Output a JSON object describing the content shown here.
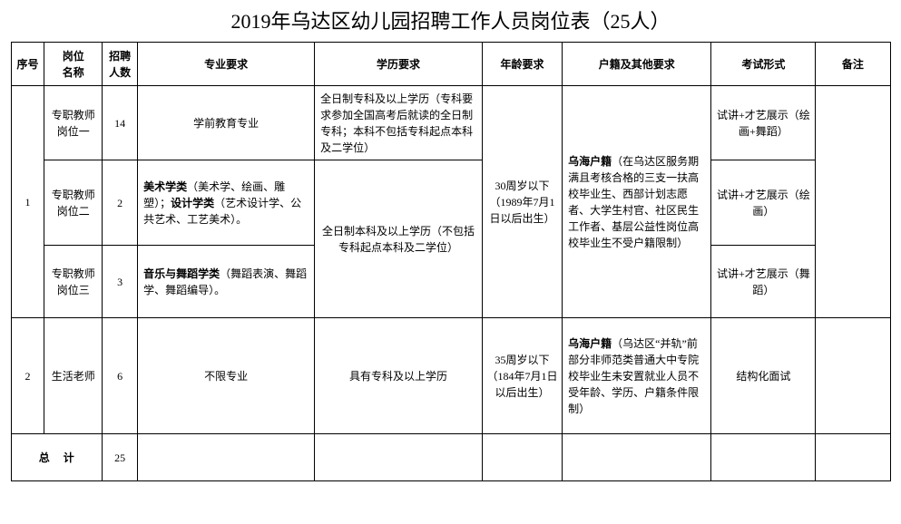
{
  "title": "2019年乌达区幼儿园招聘工作人员岗位表（25人）",
  "headers": {
    "seq": "序号",
    "position": "岗位\n名称",
    "count": "招聘\n人数",
    "major": "专业要求",
    "education": "学历要求",
    "age": "年龄要求",
    "hukou": "户籍及其他要求",
    "exam": "考试形式",
    "note": "备注"
  },
  "rows": [
    {
      "seq": "1",
      "position": "专职教师岗位一",
      "count": "14",
      "major_html": "学前教育专业",
      "education": "全日制专科及以上学历（专科要求参加全国高考后就读的全日制专科；本科不包括专科起点本科及二学位）",
      "age": "30周岁以下（1989年7月1日以后出生）",
      "hukou_bold": "乌海户籍",
      "hukou_rest": "（在乌达区服务期满且考核合格的三支一扶高校毕业生、西部计划志愿者、大学生村官、社区民生工作者、基层公益性岗位高校毕业生不受户籍限制）",
      "exam": "试讲+才艺展示（绘画+舞蹈）"
    },
    {
      "position": "专职教师岗位二",
      "count": "2",
      "major_bold1": "美术学类",
      "major_rest1": "（美术学、绘画、雕塑）；",
      "major_bold2": "设计学类",
      "major_rest2": "（艺术设计学、公共艺术、工艺美术）。",
      "education": "全日制本科及以上学历（不包括专科起点本科及二学位）",
      "exam": "试讲+才艺展示（绘画）"
    },
    {
      "position": "专职教师岗位三",
      "count": "3",
      "major_bold1": "音乐与舞蹈学类",
      "major_rest1": "（舞蹈表演、舞蹈学、舞蹈编导）。",
      "exam": "试讲+才艺展示（舞蹈）"
    },
    {
      "seq": "2",
      "position": "生活老师",
      "count": "6",
      "major_html": "不限专业",
      "education": "具有专科及以上学历",
      "age": "35周岁以下（184年7月1日以后出生）",
      "hukou_bold": "乌海户籍",
      "hukou_rest": "（乌达区“并轨”前部分非师范类普通大中专院校毕业生未安置就业人员不受年龄、学历、户籍条件限制）",
      "exam": "结构化面试"
    }
  ],
  "total": {
    "label": "总     计",
    "value": "25"
  }
}
